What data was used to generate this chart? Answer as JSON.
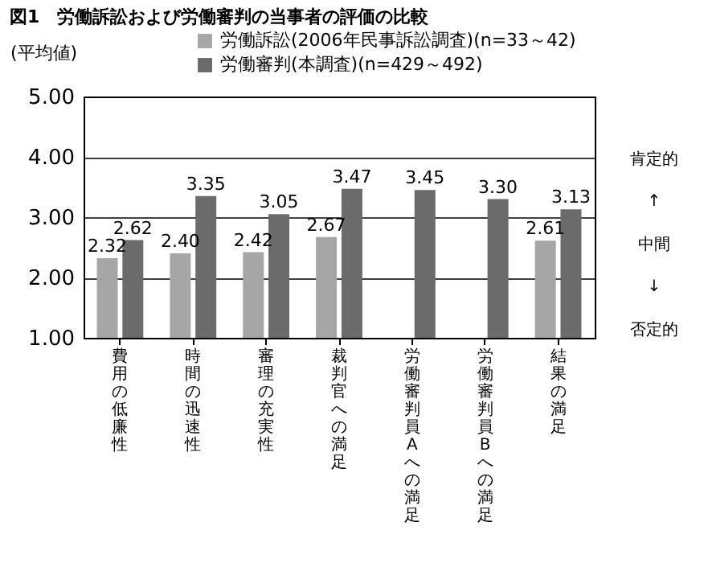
{
  "chart_data": {
    "type": "bar",
    "title": "図1　労働訴訟および労働審判の当事者の評価の比較",
    "ylabel": "(平均値)",
    "categories": [
      "費用の低廉性",
      "時間の迅速性",
      "審理の充実性",
      "裁判官への満足",
      "労働審判員Aへの満足",
      "労働審判員Bへの満足",
      "結果の満足"
    ],
    "series": [
      {
        "name": "労働訴訟(2006年民事訴訟調査)(n=33～42)",
        "color": "#a6a6a6",
        "values": [
          2.32,
          2.4,
          2.42,
          2.67,
          null,
          null,
          2.61
        ],
        "value_labels": [
          "2.32",
          "2.40",
          "2.42",
          "2.67",
          null,
          null,
          "2.61"
        ]
      },
      {
        "name": "労働審判(本調査)(n=429～492)",
        "color": "#6b6b6b",
        "values": [
          2.62,
          3.35,
          3.05,
          3.47,
          3.45,
          3.3,
          3.13
        ],
        "value_labels": [
          "2.62",
          "3.35",
          "3.05",
          "3.47",
          "3.45",
          "3.30",
          "3.13"
        ]
      }
    ],
    "ylim": [
      1,
      5
    ],
    "yticks": [
      {
        "value": 1,
        "label": "1.00"
      },
      {
        "value": 2,
        "label": "2.00"
      },
      {
        "value": 3,
        "label": "3.00"
      },
      {
        "value": 4,
        "label": "4.00"
      },
      {
        "value": 5,
        "label": "5.00"
      }
    ],
    "grid": "y",
    "legend": "top",
    "annotations": [
      "肯定的",
      "↑",
      "中間",
      "↓",
      "否定的"
    ]
  }
}
